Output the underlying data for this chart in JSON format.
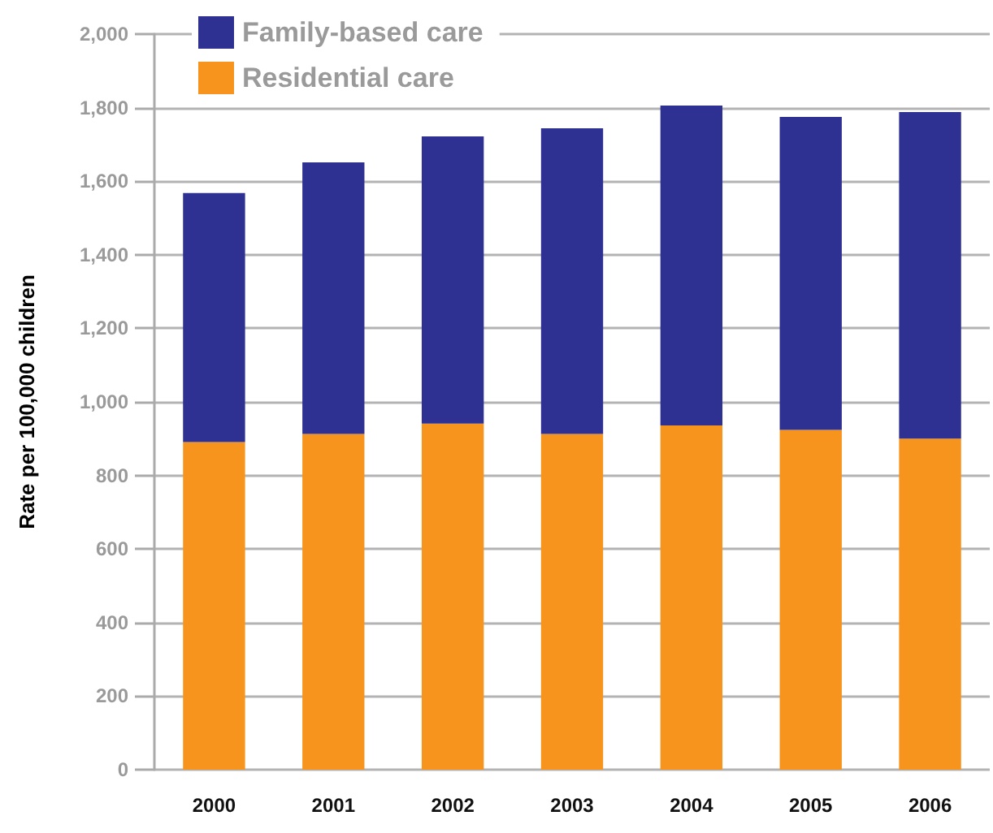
{
  "chart_data": {
    "type": "bar",
    "stacked": true,
    "ylabel": "Rate per 100,000 children",
    "categories": [
      "2000",
      "2001",
      "2002",
      "2003",
      "2004",
      "2005",
      "2006"
    ],
    "series": [
      {
        "name": "Residential care",
        "color": "#f7941d",
        "values": [
          891,
          913,
          941,
          913,
          936,
          924,
          900
        ]
      },
      {
        "name": "Family-based care",
        "color": "#2e3192",
        "values": [
          677,
          738,
          781,
          831,
          870,
          851,
          888
        ]
      }
    ],
    "ylim": [
      0,
      2000
    ],
    "yticks": [
      0,
      200,
      400,
      600,
      800,
      {
        "value": 1000,
        "label": "1,000"
      },
      {
        "value": 1200,
        "label": "1,200"
      },
      {
        "value": 1400,
        "label": "1,400"
      },
      {
        "value": 1600,
        "label": "1,600"
      },
      {
        "value": 1800,
        "label": "1,800"
      },
      {
        "value": 2000,
        "label": "2,000"
      }
    ],
    "grid": "y",
    "legend": "top left"
  }
}
